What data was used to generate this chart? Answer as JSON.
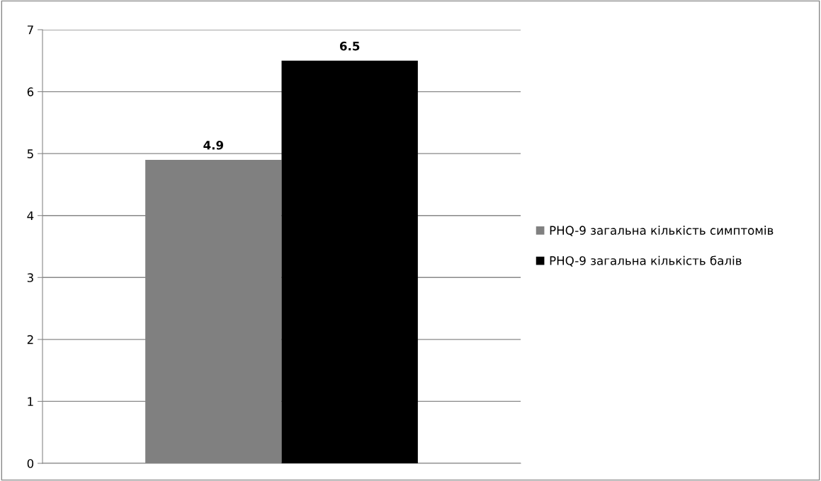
{
  "chart_data": {
    "type": "bar",
    "categories": [
      null
    ],
    "series": [
      {
        "name": "PHQ-9 загальна кількість симптомів",
        "color": "#808080",
        "values": [
          4.9
        ]
      },
      {
        "name": "PHQ-9 загальна кількість балів",
        "color": "#000000",
        "values": [
          6.5
        ]
      }
    ],
    "ylim": [
      0,
      7
    ],
    "yticks": [
      0,
      1,
      2,
      3,
      4,
      5,
      6,
      7
    ],
    "grid": "y",
    "legend": "right",
    "data_labels": true,
    "tick_labels": "y"
  }
}
